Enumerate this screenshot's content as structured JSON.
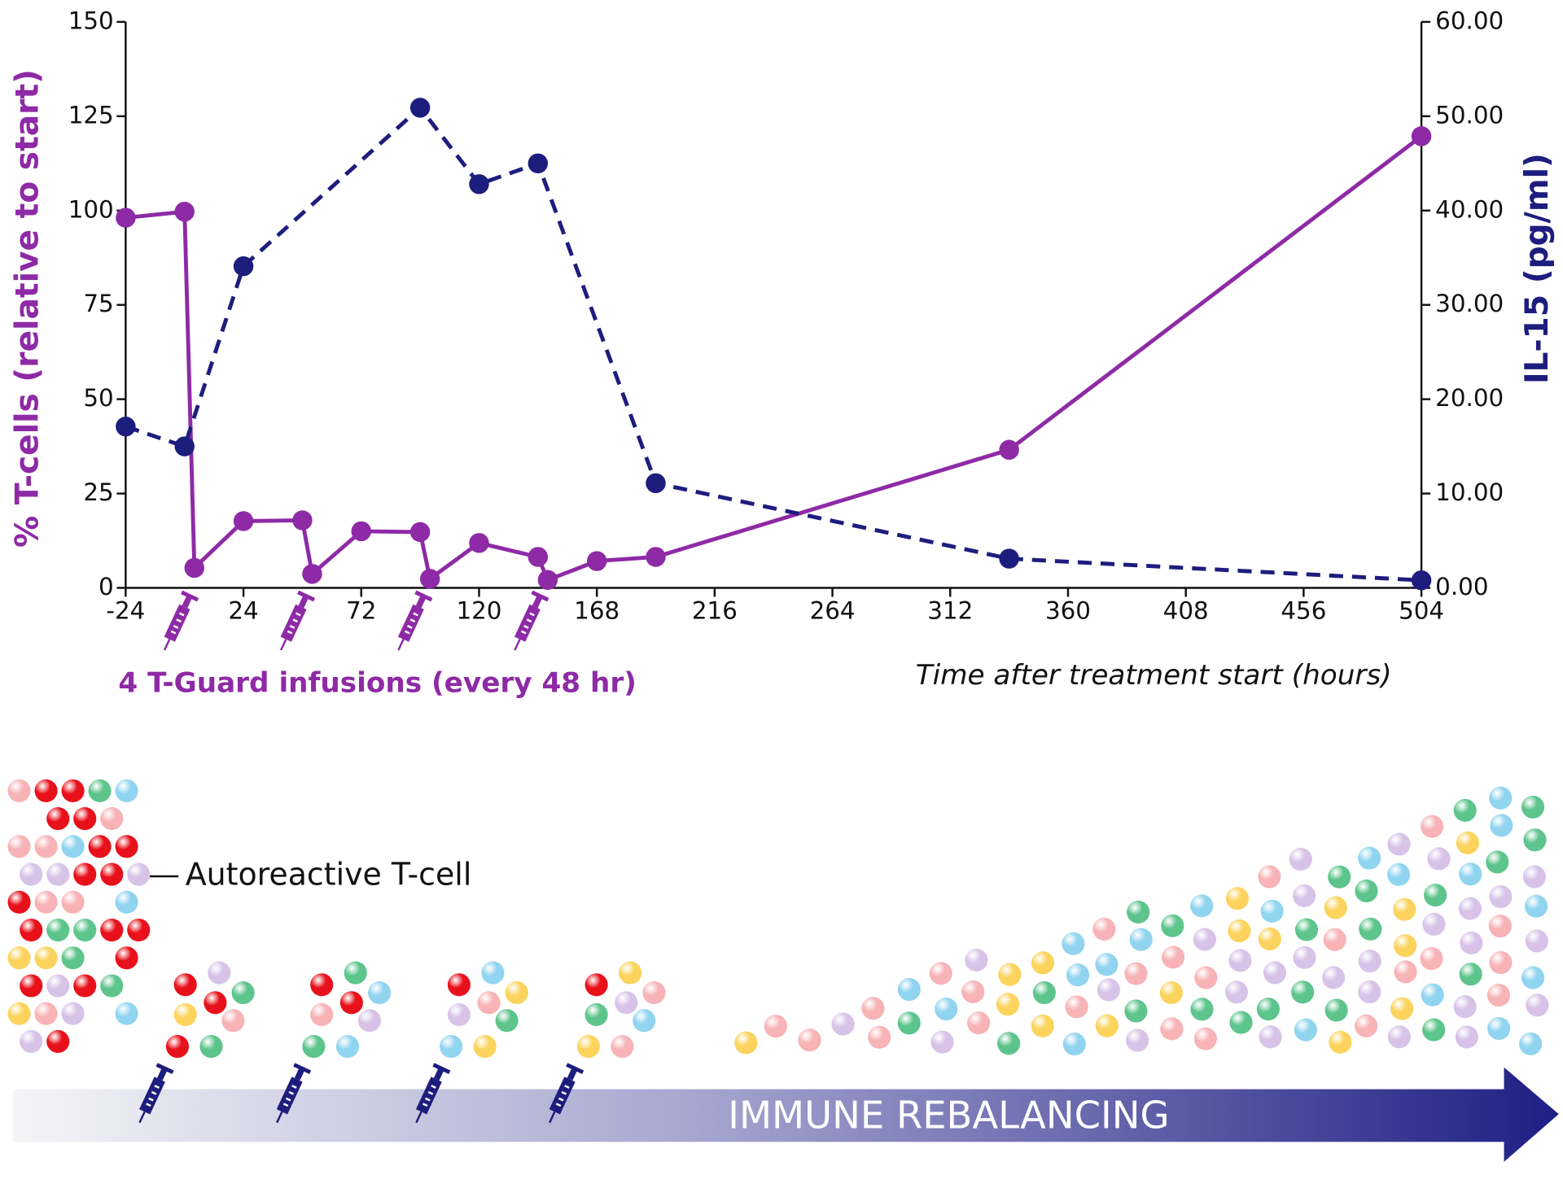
{
  "chart_data": {
    "type": "line",
    "xlabel": "Time after treatment start (hours)",
    "ylabel": "% T-cells (relative to start)",
    "y2label": "IL-15 (pg/ml)",
    "annotations": [
      "4 T-Guard infusions (every 48 hr)",
      "Autoreactive T-cell",
      "IMMUNE REBALANCING"
    ],
    "xlim": [
      -24,
      504
    ],
    "xticks": [
      -24,
      24,
      72,
      120,
      168,
      216,
      264,
      312,
      360,
      408,
      456,
      504
    ],
    "ylim": [
      0,
      150
    ],
    "yticks": [
      0,
      25,
      50,
      75,
      100,
      125,
      150
    ],
    "y2lim": [
      0,
      60
    ],
    "y2ticks": [
      {
        "value": 0,
        "label": "0.00"
      },
      {
        "value": 10,
        "label": "10.00"
      },
      {
        "value": 20,
        "label": "20.00"
      },
      {
        "value": 30,
        "label": "30.00"
      },
      {
        "value": 40,
        "label": "40.00"
      },
      {
        "value": 50,
        "label": "50.00"
      },
      {
        "value": 60,
        "label": "60.00"
      }
    ],
    "series": [
      {
        "color": "#8e2aa6",
        "dashed": false,
        "x": [
          -24,
          0,
          4,
          24,
          48,
          52,
          72,
          96,
          100,
          120,
          144,
          148,
          168,
          192,
          336,
          504
        ],
        "values": [
          98.1,
          99.7,
          5.3,
          17.7,
          17.9,
          3.7,
          15,
          14.8,
          2.4,
          11.9,
          8.2,
          2.1,
          7.1,
          8.2,
          36.6,
          119.7
        ]
      },
      {
        "color": "#1d1d7e",
        "dashed": true,
        "axis": "y2",
        "x": [
          -24,
          0,
          24,
          96,
          120,
          144,
          192,
          336,
          504
        ],
        "values": [
          17.1,
          15.0,
          34.1,
          50.9,
          42.8,
          45.0,
          11.1,
          3.1,
          0.8
        ]
      }
    ]
  }
}
